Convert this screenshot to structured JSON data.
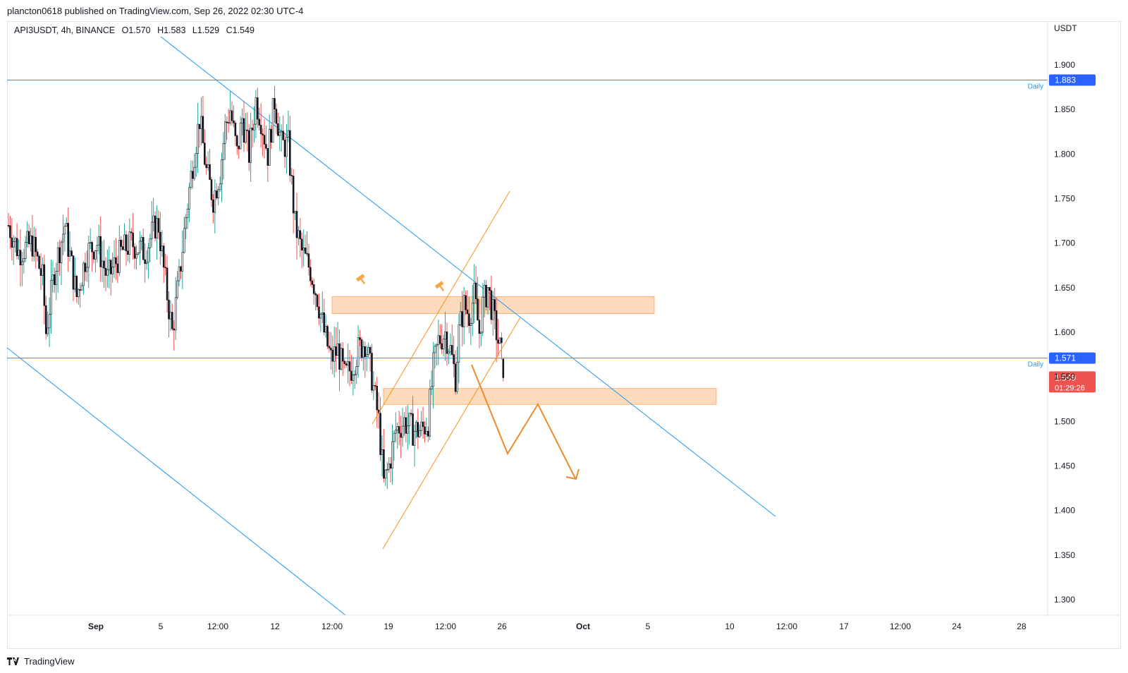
{
  "header": {
    "published": "plancton0618 published on TradingView.com, Sep 26, 2022 02:30 UTC-4"
  },
  "legend": {
    "symbol": "API3USDT, 4h, BINANCE",
    "open": "O1.570",
    "high": "H1.583",
    "low": "L1.529",
    "close": "C1.549"
  },
  "footer": {
    "brand": "TradingView"
  },
  "colors": {
    "up": "#26a69a",
    "upBody": "#ffffff",
    "down": "#ef5350",
    "candleBody": "#131722",
    "trend": "#2196f3",
    "annotation": "#f7931a",
    "zone": "#f9cfa5",
    "priceBadge": "#ef5350",
    "levelBadge": "#2962ff"
  },
  "chart_data": {
    "type": "candlestick",
    "symbol": "API3USDT",
    "timeframe": "4h",
    "exchange": "BINANCE",
    "y_axis_unit": "USDT",
    "ylim": [
      1.27,
      1.93
    ],
    "price_ticks": [
      "1.900",
      "1.850",
      "1.800",
      "1.750",
      "1.700",
      "1.650",
      "1.600",
      "1.550",
      "1.500",
      "1.450",
      "1.400",
      "1.350",
      "1.300"
    ],
    "time_ticks": [
      {
        "label": "Sep",
        "bold": true
      },
      {
        "label": "5"
      },
      {
        "label": "12:00"
      },
      {
        "label": "12"
      },
      {
        "label": "12:00"
      },
      {
        "label": "19"
      },
      {
        "label": "12:00"
      },
      {
        "label": "26"
      },
      {
        "label": "Oct",
        "bold": true
      },
      {
        "label": "5"
      },
      {
        "label": "10"
      },
      {
        "label": "12:00"
      },
      {
        "label": "17"
      },
      {
        "label": "12:00"
      },
      {
        "label": "24"
      },
      {
        "label": "28"
      }
    ],
    "horizontal_levels": [
      {
        "price": 1.883,
        "label": "Daily",
        "badge": "1.883"
      },
      {
        "price": 1.571,
        "label": "Daily",
        "badge": "1.571"
      }
    ],
    "current_price": {
      "price": 1.549,
      "badge": "1.549",
      "countdown": "01:29:26"
    },
    "zones": [
      {
        "from_price": 1.621,
        "to_price": 1.64
      },
      {
        "from_price": 1.519,
        "to_price": 1.537
      }
    ],
    "candle_waypoints": [
      [
        0,
        1.72
      ],
      [
        6,
        1.69
      ],
      [
        14,
        1.7
      ],
      [
        20,
        1.66
      ],
      [
        22,
        1.6
      ],
      [
        27,
        1.67
      ],
      [
        33,
        1.72
      ],
      [
        40,
        1.64
      ],
      [
        46,
        1.69
      ],
      [
        52,
        1.7
      ],
      [
        58,
        1.66
      ],
      [
        66,
        1.69
      ],
      [
        72,
        1.7
      ],
      [
        80,
        1.69
      ],
      [
        86,
        1.72
      ],
      [
        88,
        1.72
      ],
      [
        91,
        1.67
      ],
      [
        96,
        1.6
      ],
      [
        100,
        1.66
      ],
      [
        104,
        1.73
      ],
      [
        108,
        1.79
      ],
      [
        112,
        1.84
      ],
      [
        116,
        1.78
      ],
      [
        120,
        1.75
      ],
      [
        124,
        1.78
      ],
      [
        127,
        1.83
      ],
      [
        130,
        1.85
      ],
      [
        134,
        1.8
      ],
      [
        137,
        1.84
      ],
      [
        141,
        1.8
      ],
      [
        145,
        1.86
      ],
      [
        148,
        1.84
      ],
      [
        152,
        1.8
      ],
      [
        156,
        1.86
      ],
      [
        160,
        1.81
      ],
      [
        164,
        1.81
      ],
      [
        168,
        1.72
      ],
      [
        172,
        1.69
      ],
      [
        177,
        1.67
      ],
      [
        181,
        1.64
      ],
      [
        185,
        1.6
      ],
      [
        189,
        1.57
      ],
      [
        193,
        1.58
      ],
      [
        197,
        1.55
      ],
      [
        201,
        1.56
      ],
      [
        205,
        1.58
      ],
      [
        209,
        1.59
      ],
      [
        213,
        1.55
      ],
      [
        217,
        1.5
      ],
      [
        220,
        1.43
      ],
      [
        223,
        1.45
      ],
      [
        227,
        1.49
      ],
      [
        232,
        1.5
      ],
      [
        237,
        1.49
      ],
      [
        242,
        1.49
      ],
      [
        246,
        1.5
      ],
      [
        249,
        1.56
      ],
      [
        252,
        1.59
      ],
      [
        256,
        1.6
      ],
      [
        259,
        1.58
      ],
      [
        262,
        1.55
      ],
      [
        264,
        1.6
      ],
      [
        267,
        1.63
      ],
      [
        270,
        1.62
      ],
      [
        273,
        1.64
      ],
      [
        276,
        1.6
      ],
      [
        278,
        1.63
      ],
      [
        281,
        1.65
      ],
      [
        284,
        1.62
      ],
      [
        287,
        1.59
      ],
      [
        289,
        1.573
      ],
      [
        290,
        1.549
      ]
    ],
    "trend_lines": [
      {
        "from": [
          0.0,
          2.17
        ],
        "to": [
          0.0,
          1.39
        ]
      },
      {
        "from": [
          0.0,
          1.58
        ],
        "to": [
          0.0,
          1.27
        ]
      }
    ],
    "annotations": [
      "orange rising channel (broken)",
      "projected zig-zag move down"
    ]
  }
}
